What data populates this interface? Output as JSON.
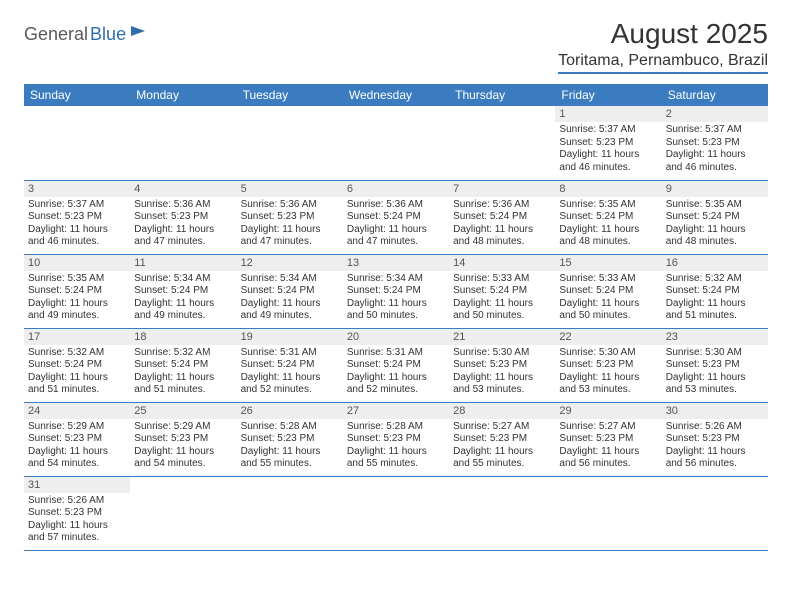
{
  "brand": {
    "part1": "General",
    "part2": "Blue",
    "color1": "#5a5a5a",
    "color2": "#2f6fa8"
  },
  "title": "August 2025",
  "location": "Toritama, Pernambuco, Brazil",
  "theme": {
    "header_bg": "#3a7cbf",
    "header_text": "#ffffff",
    "daynum_bg": "#eeeeee",
    "cell_border": "#3a7cbf",
    "body_text": "#333333",
    "title_fontsize": 28,
    "location_fontsize": 16,
    "weekday_fontsize": 12,
    "daynum_fontsize": 11,
    "cell_fontsize": 10
  },
  "weekdays": [
    "Sunday",
    "Monday",
    "Tuesday",
    "Wednesday",
    "Thursday",
    "Friday",
    "Saturday"
  ],
  "grid": {
    "first_weekday_index": 5,
    "days_in_month": 31
  },
  "days": {
    "1": {
      "sunrise": "5:37 AM",
      "sunset": "5:23 PM",
      "daylight": "11 hours and 46 minutes."
    },
    "2": {
      "sunrise": "5:37 AM",
      "sunset": "5:23 PM",
      "daylight": "11 hours and 46 minutes."
    },
    "3": {
      "sunrise": "5:37 AM",
      "sunset": "5:23 PM",
      "daylight": "11 hours and 46 minutes."
    },
    "4": {
      "sunrise": "5:36 AM",
      "sunset": "5:23 PM",
      "daylight": "11 hours and 47 minutes."
    },
    "5": {
      "sunrise": "5:36 AM",
      "sunset": "5:23 PM",
      "daylight": "11 hours and 47 minutes."
    },
    "6": {
      "sunrise": "5:36 AM",
      "sunset": "5:24 PM",
      "daylight": "11 hours and 47 minutes."
    },
    "7": {
      "sunrise": "5:36 AM",
      "sunset": "5:24 PM",
      "daylight": "11 hours and 48 minutes."
    },
    "8": {
      "sunrise": "5:35 AM",
      "sunset": "5:24 PM",
      "daylight": "11 hours and 48 minutes."
    },
    "9": {
      "sunrise": "5:35 AM",
      "sunset": "5:24 PM",
      "daylight": "11 hours and 48 minutes."
    },
    "10": {
      "sunrise": "5:35 AM",
      "sunset": "5:24 PM",
      "daylight": "11 hours and 49 minutes."
    },
    "11": {
      "sunrise": "5:34 AM",
      "sunset": "5:24 PM",
      "daylight": "11 hours and 49 minutes."
    },
    "12": {
      "sunrise": "5:34 AM",
      "sunset": "5:24 PM",
      "daylight": "11 hours and 49 minutes."
    },
    "13": {
      "sunrise": "5:34 AM",
      "sunset": "5:24 PM",
      "daylight": "11 hours and 50 minutes."
    },
    "14": {
      "sunrise": "5:33 AM",
      "sunset": "5:24 PM",
      "daylight": "11 hours and 50 minutes."
    },
    "15": {
      "sunrise": "5:33 AM",
      "sunset": "5:24 PM",
      "daylight": "11 hours and 50 minutes."
    },
    "16": {
      "sunrise": "5:32 AM",
      "sunset": "5:24 PM",
      "daylight": "11 hours and 51 minutes."
    },
    "17": {
      "sunrise": "5:32 AM",
      "sunset": "5:24 PM",
      "daylight": "11 hours and 51 minutes."
    },
    "18": {
      "sunrise": "5:32 AM",
      "sunset": "5:24 PM",
      "daylight": "11 hours and 51 minutes."
    },
    "19": {
      "sunrise": "5:31 AM",
      "sunset": "5:24 PM",
      "daylight": "11 hours and 52 minutes."
    },
    "20": {
      "sunrise": "5:31 AM",
      "sunset": "5:24 PM",
      "daylight": "11 hours and 52 minutes."
    },
    "21": {
      "sunrise": "5:30 AM",
      "sunset": "5:23 PM",
      "daylight": "11 hours and 53 minutes."
    },
    "22": {
      "sunrise": "5:30 AM",
      "sunset": "5:23 PM",
      "daylight": "11 hours and 53 minutes."
    },
    "23": {
      "sunrise": "5:30 AM",
      "sunset": "5:23 PM",
      "daylight": "11 hours and 53 minutes."
    },
    "24": {
      "sunrise": "5:29 AM",
      "sunset": "5:23 PM",
      "daylight": "11 hours and 54 minutes."
    },
    "25": {
      "sunrise": "5:29 AM",
      "sunset": "5:23 PM",
      "daylight": "11 hours and 54 minutes."
    },
    "26": {
      "sunrise": "5:28 AM",
      "sunset": "5:23 PM",
      "daylight": "11 hours and 55 minutes."
    },
    "27": {
      "sunrise": "5:28 AM",
      "sunset": "5:23 PM",
      "daylight": "11 hours and 55 minutes."
    },
    "28": {
      "sunrise": "5:27 AM",
      "sunset": "5:23 PM",
      "daylight": "11 hours and 55 minutes."
    },
    "29": {
      "sunrise": "5:27 AM",
      "sunset": "5:23 PM",
      "daylight": "11 hours and 56 minutes."
    },
    "30": {
      "sunrise": "5:26 AM",
      "sunset": "5:23 PM",
      "daylight": "11 hours and 56 minutes."
    },
    "31": {
      "sunrise": "5:26 AM",
      "sunset": "5:23 PM",
      "daylight": "11 hours and 57 minutes."
    }
  },
  "labels": {
    "sunrise": "Sunrise:",
    "sunset": "Sunset:",
    "daylight": "Daylight:"
  }
}
